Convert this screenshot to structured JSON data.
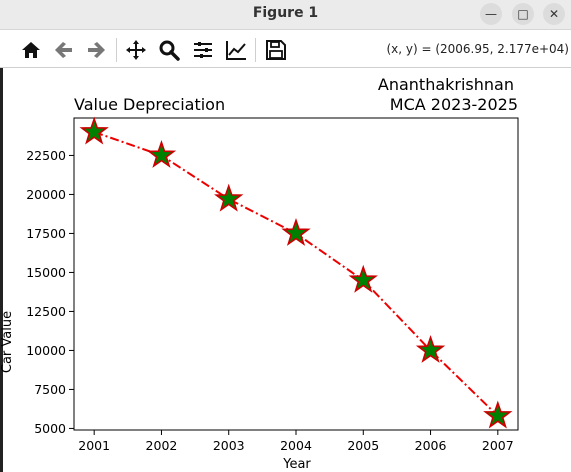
{
  "window": {
    "title": "Figure 1",
    "minimize_glyph": "—",
    "maximize_glyph": "□",
    "close_glyph": "✕"
  },
  "toolbar": {
    "buttons": [
      "home-icon",
      "back-arrow-icon",
      "forward-arrow-icon",
      "pan-icon",
      "zoom-icon",
      "subplots-icon",
      "edit-axis-icon",
      "save-icon"
    ],
    "coordinates": "(x, y) = (2006.95, 2.177e+04)"
  },
  "chart_data": {
    "type": "line",
    "title": "Value Depreciation",
    "title_right": [
      "Ananthakrishnan",
      "MCA 2023-2025"
    ],
    "xlabel": "Year",
    "ylabel": "Car Value",
    "x": [
      2001,
      2002,
      2003,
      2004,
      2005,
      2006,
      2007
    ],
    "y": [
      24000,
      22500,
      19700,
      17500,
      14500,
      10000,
      5800
    ],
    "xlim": [
      2000.7,
      2007.3
    ],
    "ylim": [
      4900,
      24900
    ],
    "yticks": [
      5000,
      7500,
      10000,
      12500,
      15000,
      17500,
      20000,
      22500
    ],
    "ytick_labels": [
      "5000",
      "7500",
      "10000",
      "12500",
      "15000",
      "17500",
      "20000",
      "22500"
    ],
    "xtick_labels": [
      "2001",
      "2002",
      "2003",
      "2004",
      "2005",
      "2006",
      "2007"
    ],
    "line_style": "dashdot",
    "line_color": "#ee0000",
    "marker": "star",
    "marker_face": "#008000",
    "marker_edge": "#cc0000",
    "grid": false
  }
}
